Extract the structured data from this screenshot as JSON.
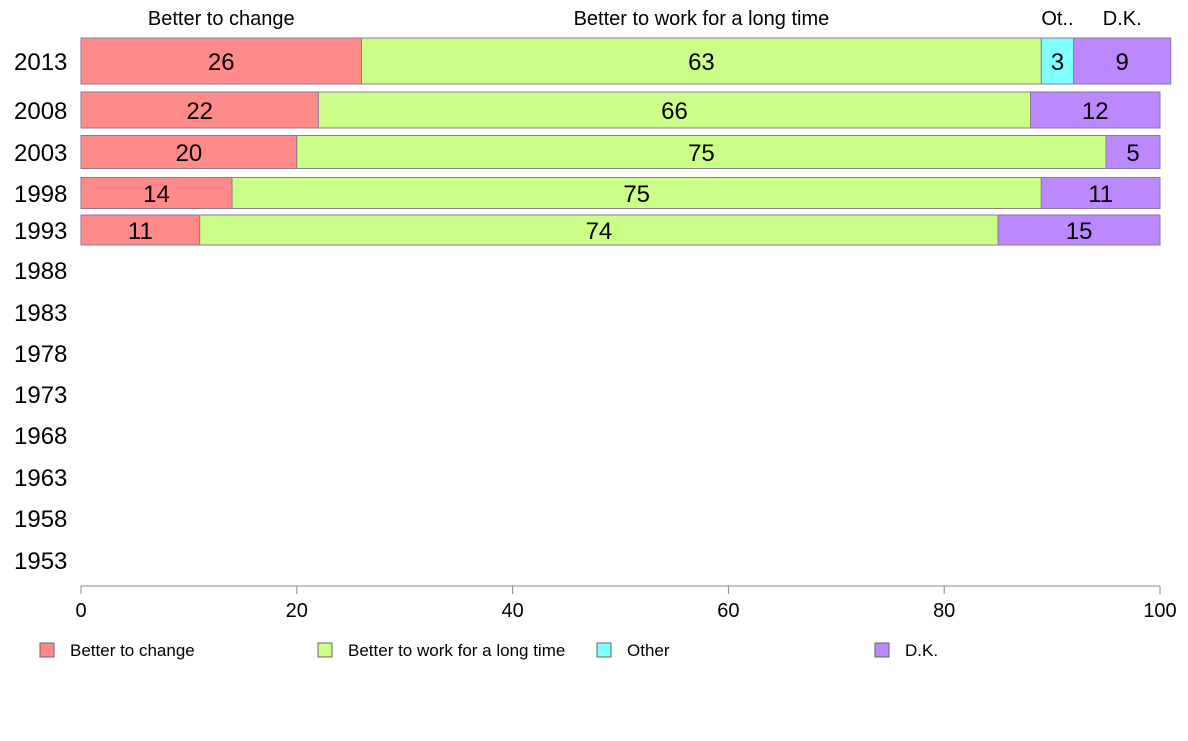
{
  "chart_data": {
    "type": "bar",
    "orientation": "horizontal",
    "stacked": true,
    "categories": [
      "2013",
      "2008",
      "2003",
      "1998",
      "1993",
      "1988",
      "1983",
      "1978",
      "1973",
      "1968",
      "1963",
      "1958",
      "1953"
    ],
    "series": [
      {
        "name": "Better to change",
        "color": "#ff8a8a",
        "values": [
          26,
          22,
          20,
          14,
          11,
          null,
          null,
          null,
          null,
          null,
          null,
          null,
          null
        ]
      },
      {
        "name": "Better to work for a long time",
        "color": "#ccff88",
        "values": [
          63,
          66,
          75,
          75,
          74,
          null,
          null,
          null,
          null,
          null,
          null,
          null,
          null
        ]
      },
      {
        "name": "Other",
        "color": "#80ffff",
        "values": [
          3,
          null,
          null,
          null,
          null,
          null,
          null,
          null,
          null,
          null,
          null,
          null,
          null
        ]
      },
      {
        "name": "D.K.",
        "color": "#bb88ff",
        "values": [
          9,
          12,
          5,
          11,
          15,
          null,
          null,
          null,
          null,
          null,
          null,
          null,
          null
        ]
      }
    ],
    "top_labels": [
      "Better to change",
      "Better to work for a long time",
      "Ot..",
      "D.K."
    ],
    "xlim": [
      0,
      100
    ],
    "xticks": [
      0,
      20,
      40,
      60,
      80,
      100
    ],
    "grid": false,
    "legend_position": "bottom",
    "title": "",
    "xlabel": "",
    "ylabel": ""
  }
}
